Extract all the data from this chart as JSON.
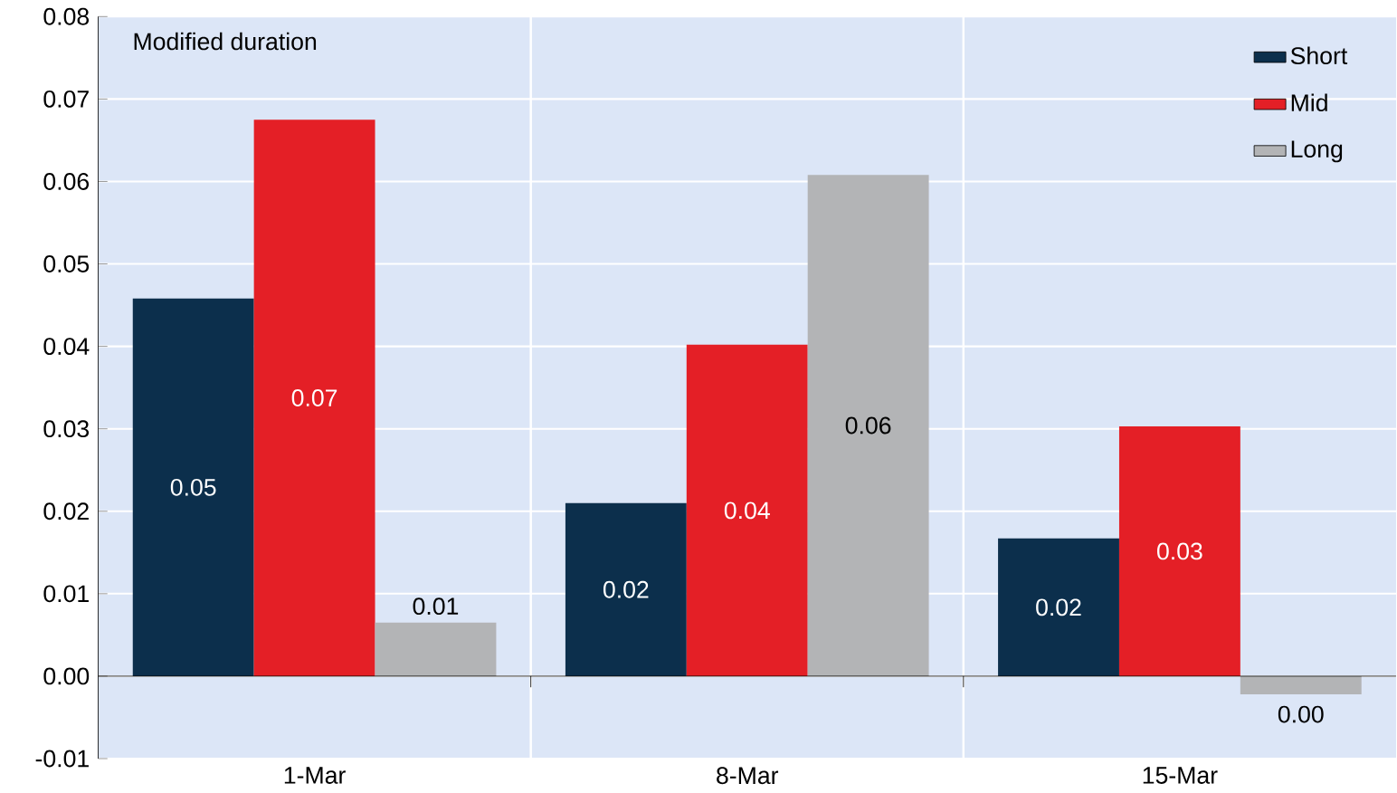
{
  "chart_data": {
    "type": "bar",
    "annotations": [
      "Modified duration"
    ],
    "categories": [
      "1-Mar",
      "8-Mar",
      "15-Mar"
    ],
    "series": [
      {
        "name": "Short",
        "color": "#0c2f4c",
        "values": [
          0.0458,
          0.021,
          0.0167
        ],
        "value_labels": [
          "0.05",
          "0.02",
          "0.02"
        ]
      },
      {
        "name": "Mid",
        "color": "#e41f26",
        "values": [
          0.0675,
          0.0402,
          0.0303
        ],
        "value_labels": [
          "0.07",
          "0.04",
          "0.03"
        ]
      },
      {
        "name": "Long",
        "color": "#b3b4b6",
        "values": [
          0.0065,
          0.0608,
          -0.0022
        ],
        "value_labels": [
          "0.01",
          "0.06",
          "0.00"
        ]
      }
    ],
    "ylim": [
      -0.01,
      0.08
    ],
    "yticks": [
      {
        "value": -0.01,
        "label": "-0.01"
      },
      {
        "value": 0,
        "label": "0.00"
      },
      {
        "value": 0.01,
        "label": "0.01"
      },
      {
        "value": 0.02,
        "label": "0.02"
      },
      {
        "value": 0.03,
        "label": "0.03"
      },
      {
        "value": 0.04,
        "label": "0.04"
      },
      {
        "value": 0.05,
        "label": "0.05"
      },
      {
        "value": 0.06,
        "label": "0.06"
      },
      {
        "value": 0.07,
        "label": "0.07"
      },
      {
        "value": 0.08,
        "label": "0.08"
      }
    ],
    "grid": true,
    "legend": "top right"
  }
}
